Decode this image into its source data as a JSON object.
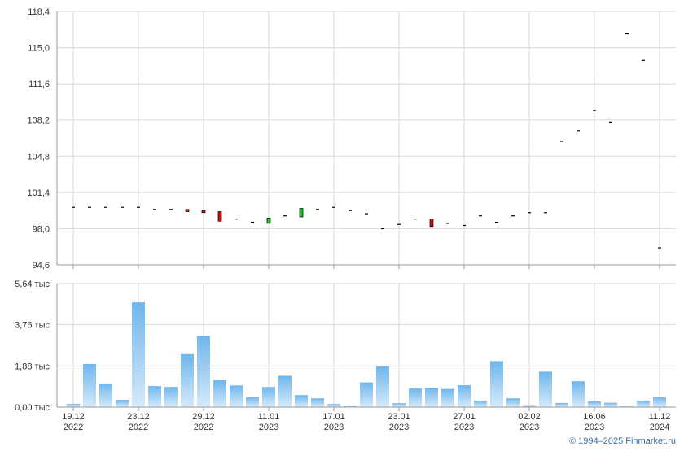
{
  "chart_data": [
    {
      "type": "candlestick",
      "name": "price",
      "y_ticks": [
        94.6,
        98.0,
        101.4,
        104.8,
        108.2,
        111.6,
        115.0,
        118.4
      ],
      "y_tick_labels": [
        "94,6",
        "98,0",
        "101,4",
        "104,8",
        "108,2",
        "111,6",
        "115,0",
        "118,4"
      ],
      "ylim": [
        94.6,
        118.4
      ],
      "grid": true,
      "points": [
        {
          "o": 100.0,
          "c": 100.0,
          "color": "none"
        },
        {
          "o": 100.0,
          "c": 100.0,
          "color": "none"
        },
        {
          "o": 100.0,
          "c": 100.0,
          "color": "none"
        },
        {
          "o": 100.0,
          "c": 100.0,
          "color": "none"
        },
        {
          "o": 100.0,
          "c": 100.0,
          "color": "none"
        },
        {
          "o": 99.8,
          "c": 99.8,
          "color": "none"
        },
        {
          "o": 99.8,
          "c": 99.8,
          "color": "none"
        },
        {
          "o": 99.8,
          "c": 99.6,
          "color": "down"
        },
        {
          "o": 99.7,
          "c": 99.5,
          "color": "down"
        },
        {
          "o": 99.6,
          "c": 98.7,
          "color": "down"
        },
        {
          "o": 98.9,
          "c": 98.9,
          "color": "none"
        },
        {
          "o": 98.6,
          "c": 98.6,
          "color": "none"
        },
        {
          "o": 98.5,
          "c": 99.0,
          "color": "up"
        },
        {
          "o": 99.2,
          "c": 99.2,
          "color": "none"
        },
        {
          "o": 99.1,
          "c": 99.9,
          "color": "up"
        },
        {
          "o": 99.8,
          "c": 99.8,
          "color": "none"
        },
        {
          "o": 100.0,
          "c": 100.0,
          "color": "none"
        },
        {
          "o": 99.7,
          "c": 99.7,
          "color": "none"
        },
        {
          "o": 99.4,
          "c": 99.4,
          "color": "none"
        },
        {
          "o": 98.0,
          "c": 98.0,
          "color": "none"
        },
        {
          "o": 98.4,
          "c": 98.4,
          "color": "none"
        },
        {
          "o": 98.9,
          "c": 98.9,
          "color": "none"
        },
        {
          "o": 98.9,
          "c": 98.2,
          "color": "down"
        },
        {
          "o": 98.5,
          "c": 98.5,
          "color": "none"
        },
        {
          "o": 98.3,
          "c": 98.3,
          "color": "none"
        },
        {
          "o": 99.2,
          "c": 99.2,
          "color": "none"
        },
        {
          "o": 98.6,
          "c": 98.6,
          "color": "none"
        },
        {
          "o": 99.2,
          "c": 99.2,
          "color": "none"
        },
        {
          "o": 99.5,
          "c": 99.5,
          "color": "none"
        },
        {
          "o": 99.5,
          "c": 99.5,
          "color": "none"
        },
        {
          "o": 106.2,
          "c": 106.2,
          "color": "none"
        },
        {
          "o": 107.2,
          "c": 107.2,
          "color": "none"
        },
        {
          "o": 109.1,
          "c": 109.1,
          "color": "none"
        },
        {
          "o": 108.0,
          "c": 108.0,
          "color": "none"
        },
        {
          "o": 116.3,
          "c": 116.3,
          "color": "none"
        },
        {
          "o": 113.8,
          "c": 113.8,
          "color": "none"
        },
        {
          "o": 96.2,
          "c": 96.2,
          "color": "none"
        }
      ]
    },
    {
      "type": "bar",
      "name": "volume",
      "y_ticks": [
        0,
        1.88,
        3.76,
        5.64
      ],
      "y_tick_labels": [
        "0,00 тыс",
        "1,88 тыс",
        "3,76 тыс",
        "5,64 тыс"
      ],
      "ylim": [
        0,
        5.64
      ],
      "grid": true,
      "values": [
        0.15,
        1.97,
        1.08,
        0.33,
        4.78,
        0.96,
        0.92,
        2.42,
        3.25,
        1.22,
        0.99,
        0.47,
        0.92,
        1.43,
        0.55,
        0.4,
        0.14,
        0.04,
        1.13,
        1.86,
        0.18,
        0.85,
        0.88,
        0.83,
        1.0,
        0.3,
        2.1,
        0.4,
        0.05,
        1.62,
        0.19,
        1.18,
        0.26,
        0.2,
        0.03,
        0.3,
        0.47
      ]
    }
  ],
  "x_axis": {
    "count": 37,
    "ticks": [
      {
        "index": 0,
        "day": "19.12",
        "year": "2022"
      },
      {
        "index": 4,
        "day": "23.12",
        "year": "2022"
      },
      {
        "index": 8,
        "day": "29.12",
        "year": "2022"
      },
      {
        "index": 12,
        "day": "11.01",
        "year": "2023"
      },
      {
        "index": 16,
        "day": "17.01",
        "year": "2023"
      },
      {
        "index": 20,
        "day": "23.01",
        "year": "2023"
      },
      {
        "index": 24,
        "day": "27.01",
        "year": "2023"
      },
      {
        "index": 28,
        "day": "02.02",
        "year": "2023"
      },
      {
        "index": 32,
        "day": "16.06",
        "year": "2023"
      },
      {
        "index": 36,
        "day": "11.12",
        "year": "2024"
      }
    ]
  },
  "colors": {
    "grid": "#d8d8d8",
    "axis": "#9a9a9a",
    "up": "#22bb22",
    "down": "#cc1111",
    "bar_top": "#6fb6ec",
    "bar_bottom": "#d6eafb"
  },
  "copyright": "© 1994–2025 Finmarket.ru"
}
